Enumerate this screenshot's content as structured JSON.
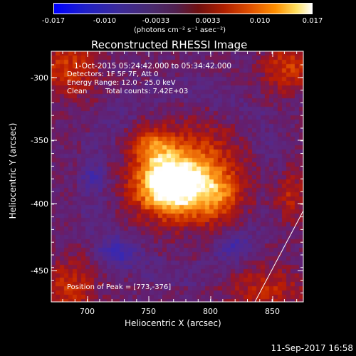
{
  "colorbar": {
    "ticks": [
      "-0.017",
      "-0.010",
      "-0.0033",
      "0.0033",
      "0.010",
      "0.017"
    ],
    "units": "(photons cm⁻² s⁻¹ asec⁻²)"
  },
  "plot": {
    "title": "Reconstructed RHESSI Image",
    "xlabel": "Heliocentric X (arcsec)",
    "ylabel": "Heliocentric Y (arcsec)",
    "xticks": [
      "700",
      "750",
      "800",
      "850"
    ],
    "yticks": [
      "-300",
      "-350",
      "-400",
      "-450"
    ]
  },
  "info": {
    "time_range": "1-Oct-2015 05:24:42.000 to 05:34:42.000",
    "detectors": "Detectors: 1F 5F 7F, Att 0",
    "energy_range": "Energy Range: 12.0 - 25.0 keV",
    "method": "Clean",
    "total_counts": "Total counts: 7.42E+03",
    "peak_position": "Position of Peak = [773,-376]"
  },
  "footer": {
    "timestamp": "11-Sep-2017 16:58"
  },
  "colors": {
    "background": "#000000",
    "foreground": "#ffffff"
  }
}
